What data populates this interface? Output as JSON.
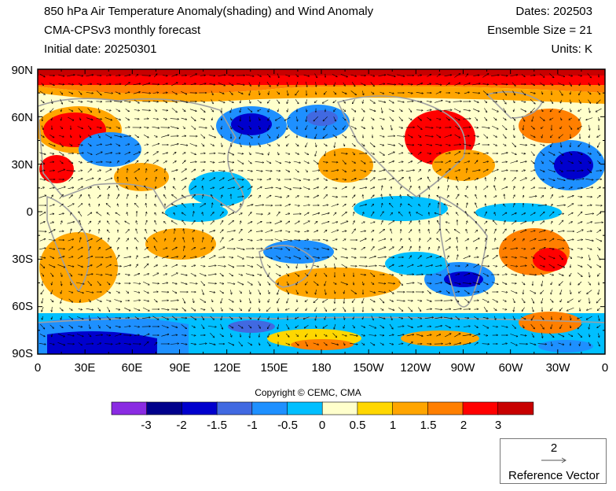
{
  "header": {
    "title_line1": "850 hPa Air Temperature Anomaly(shading) and Wind Anomaly",
    "title_line2": "CMA-CPSv3 monthly forecast",
    "title_line3": "Initial date: 20250301",
    "dates": "Dates: 202503",
    "ensemble": "Ensemble Size = 21",
    "units": "Units: K"
  },
  "axes": {
    "lat_labels": [
      "90N",
      "60N",
      "30N",
      "0",
      "30S",
      "60S",
      "90S"
    ],
    "lon_labels": [
      "0",
      "30E",
      "60E",
      "90E",
      "120E",
      "150E",
      "180",
      "150W",
      "120W",
      "90W",
      "60W",
      "30W",
      "0"
    ]
  },
  "colorbar": {
    "colors": [
      "#8a2be2",
      "#00008b",
      "#0000cd",
      "#4169e1",
      "#1e90ff",
      "#00bfff",
      "#ffffcc",
      "#ffd700",
      "#ffa500",
      "#ff7f00",
      "#ff0000",
      "#c80000"
    ],
    "labels": [
      "-3",
      "-2",
      "-1.5",
      "-1",
      "-0.5",
      "0",
      "0.5",
      "1",
      "1.5",
      "2",
      "3"
    ]
  },
  "copyright": "Copyright © CEMC, CMA",
  "reference_vector": {
    "value": "2",
    "label": "Reference Vector"
  }
}
